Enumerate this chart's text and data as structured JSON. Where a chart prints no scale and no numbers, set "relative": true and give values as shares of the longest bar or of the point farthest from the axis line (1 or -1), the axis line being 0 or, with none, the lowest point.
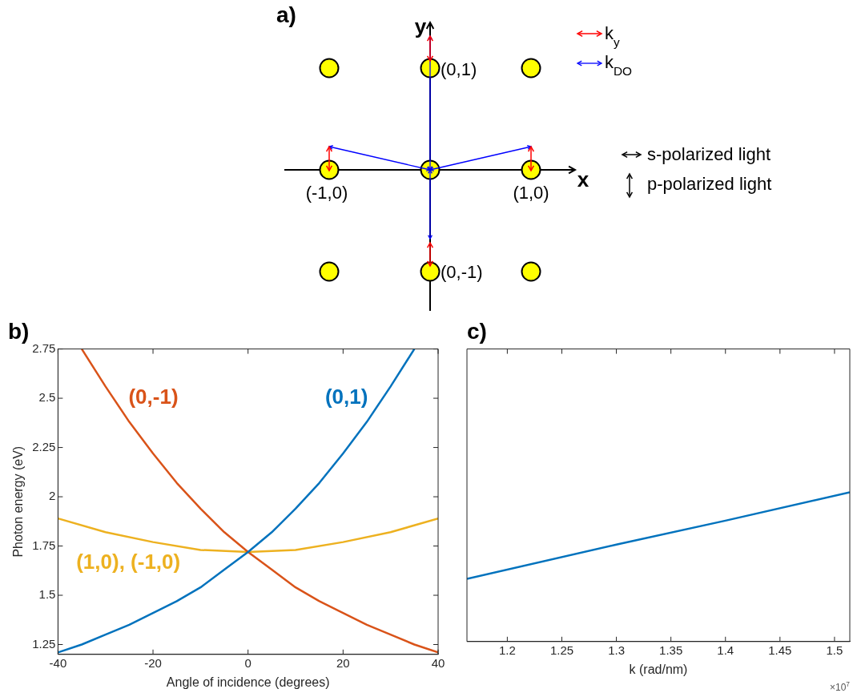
{
  "chart_data": [
    {
      "type": "other",
      "title": "a)",
      "annotations": [
        "y",
        "x",
        "(0,1)",
        "(-1,0)",
        "(1,0)",
        "(0,-1)",
        "k$_{y}$",
        "k$_{DO}$",
        "s-polarized light",
        "p-polarized light"
      ]
    },
    {
      "type": "line",
      "title": "b)",
      "xlabel": "Angle of incidence (degrees)",
      "ylabel": "Photon energy (eV)",
      "xlim": [
        -40,
        40
      ],
      "ylim": [
        1.2,
        2.75
      ],
      "xticks": [
        -40,
        -20,
        0,
        20,
        40
      ],
      "yticks": [
        1.25,
        1.5,
        1.75,
        2,
        2.25,
        2.5,
        2.75
      ],
      "grid": false,
      "legend": false,
      "series": [
        {
          "name": "(0,1)",
          "color": "#0072bd",
          "x": [
            -40,
            -35,
            -30,
            -25,
            -20,
            -15,
            -10,
            -5,
            0,
            5,
            10,
            15,
            20,
            25,
            30,
            35
          ],
          "values": [
            1.21,
            1.25,
            1.3,
            1.35,
            1.41,
            1.47,
            1.54,
            1.63,
            1.72,
            1.82,
            1.94,
            2.07,
            2.22,
            2.38,
            2.56,
            2.75
          ]
        },
        {
          "name": "(0,-1)",
          "color": "#d95319",
          "x": [
            -35,
            -30,
            -25,
            -20,
            -15,
            -10,
            -5,
            0,
            5,
            10,
            15,
            20,
            25,
            30,
            35,
            40
          ],
          "values": [
            2.75,
            2.56,
            2.38,
            2.22,
            2.07,
            1.94,
            1.82,
            1.72,
            1.63,
            1.54,
            1.47,
            1.41,
            1.35,
            1.3,
            1.25,
            1.21
          ]
        },
        {
          "name": "(1,0), (-1,0)",
          "color": "#edb120",
          "x": [
            -40,
            -30,
            -20,
            -10,
            0,
            10,
            20,
            30,
            40
          ],
          "values": [
            1.89,
            1.82,
            1.77,
            1.73,
            1.72,
            1.73,
            1.77,
            1.82,
            1.89
          ]
        }
      ]
    },
    {
      "type": "line",
      "title": "c)",
      "xlabel": "k (rad/nm)",
      "relative": true,
      "xlim": [
        1.163,
        1.514
      ],
      "xticks": [
        1.2,
        1.25,
        1.3,
        1.35,
        1.4,
        1.45,
        1.5
      ],
      "grid": false,
      "legend": false,
      "annotations": [
        "×10$^{7}$"
      ],
      "series": [
        {
          "color": "#0072bd",
          "x": [
            1.163,
            1.3,
            1.4,
            1.514
          ],
          "values": [
            0.42,
            0.65,
            0.81,
            1
          ]
        }
      ]
    }
  ]
}
